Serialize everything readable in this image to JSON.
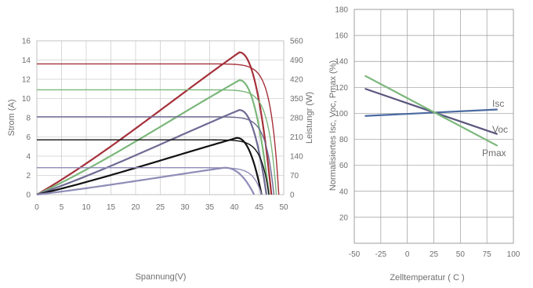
{
  "chart_data": [
    {
      "type": "line",
      "xlabel": "Spannung(V)",
      "ylabel": "Strom (A)",
      "y2label": "Leistungr (W)",
      "xlim": [
        0,
        50
      ],
      "ylim": [
        0,
        16
      ],
      "y2lim": [
        0,
        560
      ],
      "xticks": [
        "0",
        "5",
        "10",
        "15",
        "20",
        "25",
        "30",
        "35",
        "40",
        "45",
        "50"
      ],
      "yticks": [
        "0",
        "2",
        "4",
        "6",
        "8",
        "10",
        "12",
        "14",
        "16"
      ],
      "y2ticks": [
        "0",
        "70",
        "140",
        "210",
        "280",
        "350",
        "420",
        "490",
        "560"
      ],
      "grid": true,
      "series": [
        {
          "color": "#a5303a",
          "isc": 13.6,
          "voc": 49.0,
          "pmax": 14.8,
          "vmp": 41.0
        },
        {
          "color": "#7bb77b",
          "isc": 10.9,
          "voc": 48.5,
          "pmax": 11.9,
          "vmp": 41.0
        },
        {
          "color": "#6e6a94",
          "isc": 8.1,
          "voc": 48.0,
          "pmax": 8.8,
          "vmp": 41.0
        },
        {
          "color": "#111111",
          "isc": 5.7,
          "voc": 47.0,
          "pmax": 5.9,
          "vmp": 40.5
        },
        {
          "color": "#8f8cb8",
          "isc": 2.8,
          "voc": 45.5,
          "pmax": 2.8,
          "vmp": 38.0
        }
      ]
    },
    {
      "type": "line",
      "xlabel": "Zelltemperatur ( C )",
      "ylabel": "Normalisiertes Isc, Voc, Pmax (%)",
      "xlim": [
        -50,
        100
      ],
      "ylim": [
        0,
        180
      ],
      "xticks": [
        "-50",
        "-25",
        "0",
        "25",
        "50",
        "75",
        "100"
      ],
      "yticks": [
        "20",
        "40",
        "60",
        "80",
        "100",
        "120",
        "140",
        "160",
        "180"
      ],
      "grid": true,
      "series": [
        {
          "name": "Isc",
          "color": "#4a6aa0",
          "x": [
            -40,
            85
          ],
          "y": [
            98,
            103
          ]
        },
        {
          "name": "Voc",
          "color": "#5a567e",
          "x": [
            -40,
            85
          ],
          "y": [
            119,
            84
          ]
        },
        {
          "name": "Pmax",
          "color": "#7bb77b",
          "x": [
            -40,
            85
          ],
          "y": [
            129,
            75
          ]
        }
      ]
    }
  ]
}
